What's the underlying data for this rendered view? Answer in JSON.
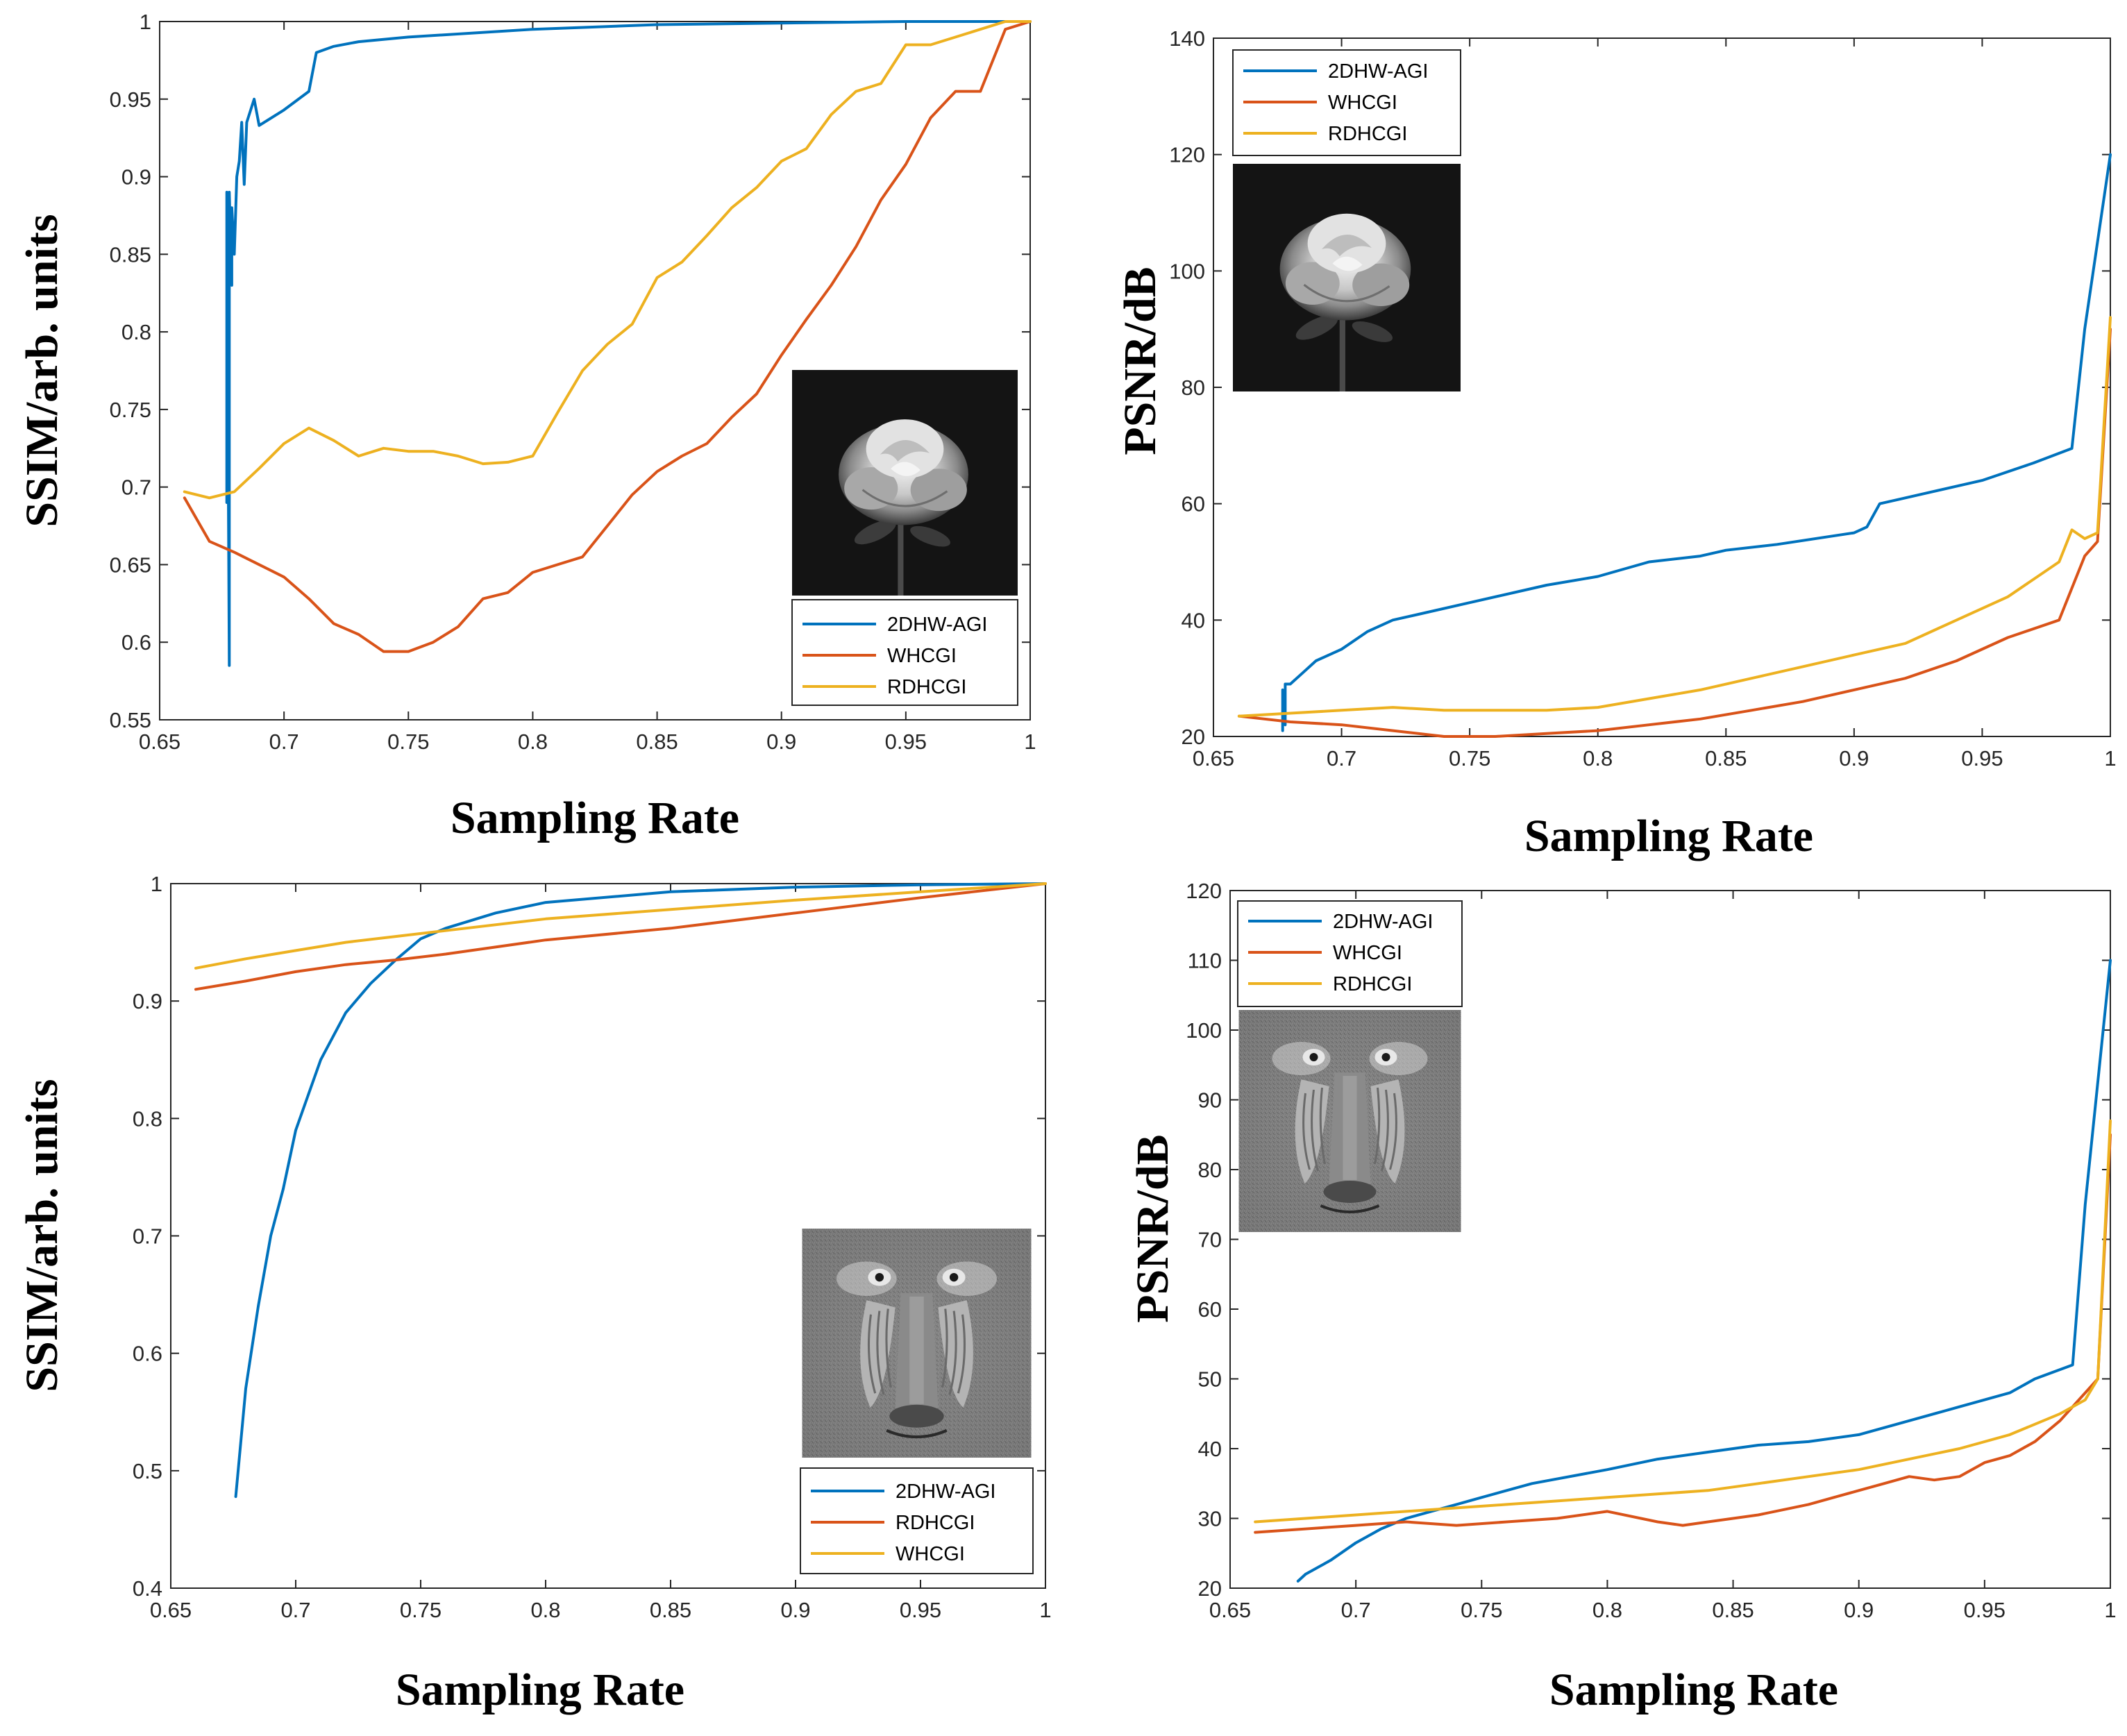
{
  "colors": {
    "blue": "#0072BD",
    "orange": "#D95319",
    "yellow": "#EDB120"
  },
  "chart_data": [
    {
      "type": "line",
      "xlabel": "Sampling Rate",
      "ylabel": "SSIM/arb. units",
      "xlim": [
        0.65,
        1
      ],
      "ylim": [
        0.55,
        1
      ],
      "xticks": [
        "0.65",
        "0.7",
        "0.75",
        "0.8",
        "0.85",
        "0.9",
        "0.95",
        "1"
      ],
      "yticks": [
        "0.55",
        "0.6",
        "0.65",
        "0.7",
        "0.75",
        "0.8",
        "0.85",
        "0.9",
        "0.95",
        "1"
      ],
      "legend_position": "bottom-right",
      "inset_image": "rose-photo",
      "series": [
        {
          "name": "2DHW-AGI",
          "color": "#0072BD",
          "x": [
            0.677,
            0.677,
            0.678,
            0.678,
            0.679,
            0.679,
            0.68,
            0.681,
            0.682,
            0.683,
            0.684,
            0.685,
            0.688,
            0.69,
            0.7,
            0.71,
            0.713,
            0.72,
            0.73,
            0.75,
            0.8,
            0.85,
            0.9,
            0.95,
            1.0
          ],
          "y": [
            0.69,
            0.89,
            0.585,
            0.89,
            0.83,
            0.88,
            0.85,
            0.9,
            0.91,
            0.935,
            0.895,
            0.935,
            0.95,
            0.933,
            0.943,
            0.955,
            0.98,
            0.984,
            0.987,
            0.99,
            0.995,
            0.998,
            0.999,
            1.0,
            1.0
          ]
        },
        {
          "name": "WHCGI",
          "color": "#D95319",
          "x": [
            0.66,
            0.67,
            0.68,
            0.69,
            0.7,
            0.71,
            0.72,
            0.73,
            0.74,
            0.75,
            0.76,
            0.77,
            0.78,
            0.79,
            0.8,
            0.81,
            0.82,
            0.83,
            0.84,
            0.85,
            0.86,
            0.87,
            0.88,
            0.89,
            0.9,
            0.91,
            0.92,
            0.93,
            0.94,
            0.95,
            0.96,
            0.97,
            0.98,
            0.99,
            1.0
          ],
          "y": [
            0.693,
            0.665,
            0.658,
            0.65,
            0.642,
            0.628,
            0.612,
            0.605,
            0.594,
            0.594,
            0.6,
            0.61,
            0.628,
            0.632,
            0.645,
            0.65,
            0.655,
            0.675,
            0.695,
            0.71,
            0.72,
            0.728,
            0.745,
            0.76,
            0.785,
            0.808,
            0.83,
            0.855,
            0.885,
            0.908,
            0.938,
            0.955,
            0.955,
            0.995,
            1.0
          ]
        },
        {
          "name": "RDHCGI",
          "color": "#EDB120",
          "x": [
            0.66,
            0.67,
            0.68,
            0.69,
            0.7,
            0.71,
            0.72,
            0.73,
            0.74,
            0.75,
            0.76,
            0.77,
            0.78,
            0.79,
            0.8,
            0.81,
            0.82,
            0.83,
            0.84,
            0.85,
            0.86,
            0.87,
            0.88,
            0.89,
            0.9,
            0.91,
            0.92,
            0.93,
            0.94,
            0.95,
            0.96,
            0.97,
            0.98,
            0.99,
            1.0
          ],
          "y": [
            0.697,
            0.693,
            0.697,
            0.712,
            0.728,
            0.738,
            0.73,
            0.72,
            0.725,
            0.723,
            0.723,
            0.72,
            0.715,
            0.716,
            0.72,
            0.748,
            0.775,
            0.792,
            0.805,
            0.835,
            0.845,
            0.862,
            0.88,
            0.893,
            0.91,
            0.918,
            0.94,
            0.955,
            0.96,
            0.985,
            0.985,
            0.99,
            0.995,
            1.0,
            1.0
          ]
        }
      ]
    },
    {
      "type": "line",
      "xlabel": "Sampling Rate",
      "ylabel": "PSNR/dB",
      "xlim": [
        0.65,
        1
      ],
      "ylim": [
        20,
        140
      ],
      "xticks": [
        "0.65",
        "0.7",
        "0.75",
        "0.8",
        "0.85",
        "0.9",
        "0.95",
        "1"
      ],
      "yticks": [
        "20",
        "40",
        "60",
        "80",
        "100",
        "120",
        "140"
      ],
      "legend_position": "top-left",
      "inset_image": "rose-photo",
      "series": [
        {
          "name": "2DHW-AGI",
          "color": "#0072BD",
          "x": [
            0.677,
            0.677,
            0.678,
            0.678,
            0.68,
            0.685,
            0.69,
            0.7,
            0.71,
            0.72,
            0.73,
            0.75,
            0.78,
            0.8,
            0.82,
            0.84,
            0.85,
            0.87,
            0.9,
            0.905,
            0.91,
            0.92,
            0.95,
            0.97,
            0.985,
            0.99,
            1.0
          ],
          "y": [
            21,
            28,
            22,
            29,
            29,
            31,
            33,
            35,
            38,
            40,
            41,
            43,
            46,
            47.5,
            50,
            51,
            52,
            53,
            55,
            56,
            60,
            61,
            64,
            67,
            69.5,
            90,
            120
          ]
        },
        {
          "name": "WHCGI",
          "color": "#D95319",
          "x": [
            0.66,
            0.68,
            0.7,
            0.72,
            0.74,
            0.75,
            0.76,
            0.78,
            0.8,
            0.82,
            0.84,
            0.86,
            0.88,
            0.9,
            0.92,
            0.94,
            0.96,
            0.98,
            0.99,
            0.995,
            1.0
          ],
          "y": [
            23.5,
            22.5,
            22,
            21,
            20,
            20,
            20,
            20.5,
            21,
            22,
            23,
            24.5,
            26,
            28,
            30,
            33,
            37,
            40,
            51,
            53.5,
            90
          ]
        },
        {
          "name": "RDHCGI",
          "color": "#EDB120",
          "x": [
            0.66,
            0.68,
            0.7,
            0.72,
            0.74,
            0.76,
            0.78,
            0.8,
            0.82,
            0.84,
            0.86,
            0.88,
            0.9,
            0.92,
            0.94,
            0.96,
            0.97,
            0.98,
            0.985,
            0.99,
            0.995,
            1.0
          ],
          "y": [
            23.5,
            24,
            24.5,
            25,
            24.5,
            24.5,
            24.5,
            25,
            26.5,
            28,
            30,
            32,
            34,
            36,
            40,
            44,
            47,
            50,
            55.5,
            54,
            55,
            92
          ]
        }
      ]
    },
    {
      "type": "line",
      "xlabel": "Sampling Rate",
      "ylabel": "SSIM/arb. units",
      "xlim": [
        0.65,
        1
      ],
      "ylim": [
        0.4,
        1
      ],
      "xticks": [
        "0.65",
        "0.7",
        "0.75",
        "0.8",
        "0.85",
        "0.9",
        "0.95",
        "1"
      ],
      "yticks": [
        "0.4",
        "0.5",
        "0.6",
        "0.7",
        "0.8",
        "0.9",
        "1"
      ],
      "legend_position": "bottom-right",
      "inset_image": "baboon-photo",
      "series": [
        {
          "name": "2DHW-AGI",
          "color": "#0072BD",
          "x": [
            0.676,
            0.68,
            0.685,
            0.69,
            0.695,
            0.7,
            0.705,
            0.71,
            0.72,
            0.73,
            0.74,
            0.75,
            0.76,
            0.78,
            0.8,
            0.85,
            0.9,
            0.95,
            1.0
          ],
          "y": [
            0.478,
            0.57,
            0.64,
            0.7,
            0.74,
            0.79,
            0.82,
            0.85,
            0.89,
            0.915,
            0.935,
            0.953,
            0.962,
            0.975,
            0.984,
            0.993,
            0.997,
            0.999,
            1.0
          ]
        },
        {
          "name": "RDHCGI",
          "color": "#D95319",
          "x": [
            0.66,
            0.68,
            0.7,
            0.72,
            0.74,
            0.76,
            0.8,
            0.85,
            0.9,
            0.95,
            1.0
          ],
          "y": [
            0.91,
            0.917,
            0.925,
            0.931,
            0.935,
            0.94,
            0.952,
            0.962,
            0.975,
            0.988,
            1.0
          ]
        },
        {
          "name": "WHCGI",
          "color": "#EDB120",
          "x": [
            0.66,
            0.68,
            0.7,
            0.72,
            0.74,
            0.76,
            0.8,
            0.85,
            0.9,
            0.95,
            1.0
          ],
          "y": [
            0.928,
            0.936,
            0.943,
            0.95,
            0.955,
            0.96,
            0.97,
            0.978,
            0.986,
            0.993,
            1.0
          ]
        }
      ]
    },
    {
      "type": "line",
      "xlabel": "Sampling Rate",
      "ylabel": "PSNR/dB",
      "xlim": [
        0.65,
        1
      ],
      "ylim": [
        20,
        120
      ],
      "xticks": [
        "0.65",
        "0.7",
        "0.75",
        "0.8",
        "0.85",
        "0.9",
        "0.95",
        "1"
      ],
      "yticks": [
        "20",
        "30",
        "40",
        "50",
        "60",
        "70",
        "80",
        "90",
        "100",
        "110",
        "120"
      ],
      "legend_position": "top-left",
      "inset_image": "baboon-photo",
      "series": [
        {
          "name": "2DHW-AGI",
          "color": "#0072BD",
          "x": [
            0.677,
            0.68,
            0.69,
            0.7,
            0.71,
            0.72,
            0.73,
            0.74,
            0.75,
            0.77,
            0.8,
            0.82,
            0.84,
            0.86,
            0.88,
            0.9,
            0.92,
            0.94,
            0.96,
            0.97,
            0.985,
            0.99,
            1.0
          ],
          "y": [
            21,
            22,
            24,
            26.5,
            28.5,
            30,
            31,
            32,
            33,
            35,
            37,
            38.5,
            39.5,
            40.5,
            41,
            42,
            44,
            46,
            48,
            50,
            52,
            75,
            110
          ]
        },
        {
          "name": "WHCGI",
          "color": "#D95319",
          "x": [
            0.66,
            0.68,
            0.7,
            0.72,
            0.74,
            0.76,
            0.78,
            0.8,
            0.82,
            0.83,
            0.84,
            0.86,
            0.88,
            0.9,
            0.91,
            0.92,
            0.93,
            0.94,
            0.95,
            0.96,
            0.97,
            0.98,
            0.99,
            0.995,
            1.0
          ],
          "y": [
            28,
            28.5,
            29,
            29.5,
            29,
            29.5,
            30,
            31,
            29.5,
            29,
            29.5,
            30.5,
            32,
            34,
            35,
            36,
            35.5,
            36,
            38,
            39,
            41,
            44,
            48,
            50,
            85
          ]
        },
        {
          "name": "RDHCGI",
          "color": "#EDB120",
          "x": [
            0.66,
            0.68,
            0.7,
            0.72,
            0.74,
            0.76,
            0.78,
            0.8,
            0.82,
            0.84,
            0.86,
            0.88,
            0.9,
            0.92,
            0.94,
            0.96,
            0.98,
            0.99,
            0.995,
            1.0
          ],
          "y": [
            29.5,
            30,
            30.5,
            31,
            31.5,
            32,
            32.5,
            33,
            33.5,
            34,
            35,
            36,
            37,
            38.5,
            40,
            42,
            45,
            47,
            50,
            87
          ]
        }
      ]
    }
  ]
}
